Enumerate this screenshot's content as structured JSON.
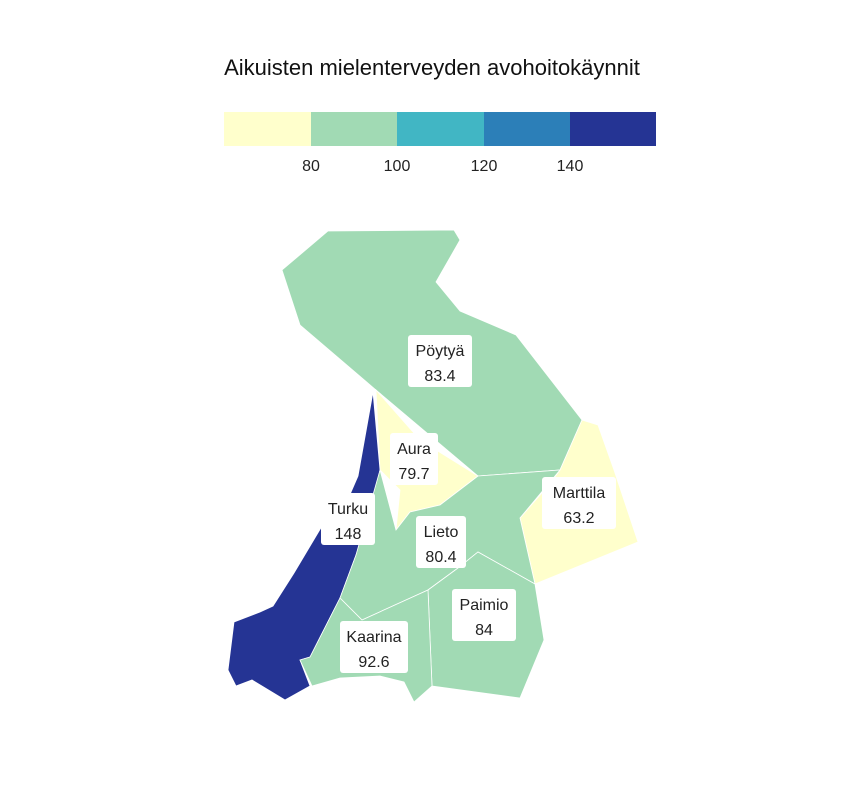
{
  "title": "Aikuisten mielenterveyden avohoitokäynnit",
  "legend": {
    "bins": [
      {
        "color": "#ffffcc"
      },
      {
        "color": "#a1dab4"
      },
      {
        "color": "#41b6c4"
      },
      {
        "color": "#2c7fb8"
      },
      {
        "color": "#253494"
      }
    ],
    "ticks": [
      "80",
      "100",
      "120",
      "140"
    ]
  },
  "regions": [
    {
      "id": "poytya",
      "name": "Pöytyä",
      "value": "83.4",
      "color": "#a1dab4"
    },
    {
      "id": "aura",
      "name": "Aura",
      "value": "79.7",
      "color": "#ffffcc"
    },
    {
      "id": "marttila",
      "name": "Marttila",
      "value": "63.2",
      "color": "#ffffcc"
    },
    {
      "id": "turku",
      "name": "Turku",
      "value": "148",
      "color": "#253494"
    },
    {
      "id": "lieto",
      "name": "Lieto",
      "value": "80.4",
      "color": "#a1dab4"
    },
    {
      "id": "paimio",
      "name": "Paimio",
      "value": "84",
      "color": "#a1dab4"
    },
    {
      "id": "kaarina",
      "name": "Kaarina",
      "value": "92.6",
      "color": "#a1dab4"
    }
  ]
}
